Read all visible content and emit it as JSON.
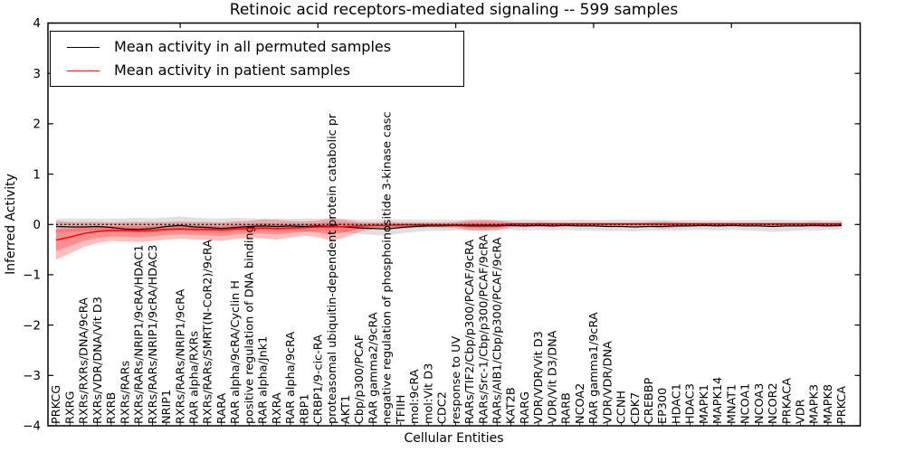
{
  "figure": {
    "title": "Retinoic acid receptors-mediated signaling -- 599 samples",
    "xlabel": "Cellular Entities",
    "ylabel": "Inferred Activity",
    "legend": [
      {
        "label": "Mean activity in all permuted samples",
        "color": "#000000"
      },
      {
        "label": "Mean activity in patient samples",
        "color": "#ff0000"
      }
    ]
  },
  "chart_data": {
    "type": "line",
    "title": "Retinoic acid receptors-mediated signaling -- 599 samples",
    "xlabel": "Cellular Entities",
    "ylabel": "Inferred Activity",
    "ylim": [
      -4,
      4
    ],
    "yticks": [
      -4,
      -3,
      -2,
      -1,
      0,
      1,
      2,
      3,
      4
    ],
    "grid": false,
    "legend_position": "upper left",
    "zero_line": {
      "style": "dotted",
      "color": "#000000",
      "y": 0
    },
    "top_tick_start": 9,
    "top_tick_step": 10,
    "inner_band_scale": 0.55,
    "categories": [
      "PRKCG",
      "RXRG",
      "RXRs/RXRs/DNA/9cRA",
      "RXRs/VDR/DNA/Vit D3",
      "RXRB",
      "RXRs/RARs",
      "RXRs/RARs/NRIP1/9cRA/HDAC1",
      "RXRs/RARs/NRIP1/9cRA/HDAC3",
      "NRIP1",
      "RXRs/RARs/NRIP1/9cRA",
      "RAR alpha/RXRs",
      "RXRs/RARs/SMRT(N-CoR2)/9cRA",
      "RARA",
      "RAR alpha/9cRA/Cyclin H",
      "positive regulation of DNA binding",
      "RAR alpha/Jnk1",
      "RXRA",
      "RAR alpha/9cRA",
      "RBP1",
      "CRBP1/9-cic-RA",
      "proteasomal ubiquitin-dependent protein catabolic pr",
      "AKT1",
      "Cbp/p300/PCAF",
      "RAR gamma2/9cRA",
      "negative regulation of phosphoinositide 3-kinase casc",
      "TFIIH",
      "mol:9cRA",
      "mol:Vit D3",
      "CDC2",
      "response to UV",
      "RARs/TIF2/Cbp/p300/PCAF/9cRA",
      "RARs/Src-1/Cbp/p300/PCAF/9cRA",
      "RARs/AIB1/Cbp/p300/PCAF/9cRA",
      "KAT2B",
      "RARG",
      "VDR/VDR/Vit D3",
      "VDR/Vit D3/DNA",
      "RARB",
      "NCOA2",
      "RAR gamma1/9cRA",
      "VDR/VDR/DNA",
      "CCNH",
      "CDK7",
      "CREBBP",
      "EP300",
      "HDAC1",
      "HDAC3",
      "MAPK1",
      "MAPK14",
      "MNAT1",
      "NCOA1",
      "NCOA3",
      "NCOR2",
      "PRKACA",
      "VDR",
      "MAPK3",
      "MAPK8",
      "PRKCA"
    ],
    "series": [
      {
        "name": "Mean activity in all permuted samples",
        "color": "#000000",
        "style": "solid",
        "values": [
          -0.04,
          -0.05,
          -0.05,
          -0.04,
          -0.06,
          -0.09,
          -0.1,
          -0.08,
          -0.04,
          -0.02,
          -0.05,
          -0.06,
          -0.08,
          -0.06,
          -0.04,
          -0.03,
          -0.04,
          -0.03,
          -0.04,
          -0.03,
          -0.04,
          -0.05,
          -0.07,
          -0.08,
          -0.09,
          -0.06,
          -0.04,
          -0.03,
          -0.03,
          -0.02,
          -0.03,
          -0.03,
          -0.03,
          -0.02,
          -0.03,
          -0.02,
          -0.03,
          -0.02,
          -0.03,
          -0.03,
          -0.04,
          -0.04,
          -0.05,
          -0.04,
          -0.04,
          -0.03,
          -0.03,
          -0.02,
          -0.03,
          -0.02,
          -0.03,
          -0.03,
          -0.04,
          -0.03,
          -0.03,
          -0.02,
          -0.03,
          -0.02
        ]
      },
      {
        "name": "Mean activity in patient samples",
        "color": "#ff0000",
        "style": "solid",
        "values": [
          -0.31,
          -0.25,
          -0.18,
          -0.14,
          -0.12,
          -0.12,
          -0.13,
          -0.12,
          -0.1,
          -0.09,
          -0.1,
          -0.1,
          -0.11,
          -0.09,
          -0.08,
          -0.07,
          -0.08,
          -0.07,
          -0.06,
          -0.05,
          -0.05,
          -0.04,
          -0.03,
          -0.02,
          -0.02,
          -0.01,
          -0.01,
          -0.01,
          -0.01,
          -0.01,
          -0.01,
          -0.01,
          -0.01,
          0.01,
          0.01,
          0.01,
          0.01,
          0.01,
          0.01,
          0.01,
          0.01,
          0.01,
          0.01,
          0.01,
          0.01,
          0.01,
          0.01,
          0.01,
          0.01,
          0.01,
          0.01,
          0.01,
          0.01,
          0.01,
          0.01,
          0.01,
          0.01,
          0.01
        ]
      }
    ],
    "bands": {
      "permuted": {
        "name": "permuted-samples-band",
        "color": "#000000",
        "opacity": 0.12,
        "upper": [
          0.11,
          0.12,
          0.12,
          0.11,
          0.12,
          0.12,
          0.13,
          0.12,
          0.14,
          0.16,
          0.13,
          0.12,
          0.12,
          0.13,
          0.12,
          0.11,
          0.12,
          0.11,
          0.12,
          0.11,
          0.12,
          0.11,
          0.1,
          0.1,
          0.11,
          0.1,
          0.1,
          0.09,
          0.1,
          0.09,
          0.1,
          0.1,
          0.09,
          0.09,
          0.1,
          0.09,
          0.09,
          0.09,
          0.1,
          0.09,
          0.09,
          0.1,
          0.09,
          0.09,
          0.09,
          0.08,
          0.09,
          0.08,
          0.09,
          0.08,
          0.09,
          0.09,
          0.1,
          0.09,
          0.08,
          0.09,
          0.08,
          0.08
        ],
        "lower": [
          -0.16,
          -0.15,
          -0.14,
          -0.14,
          -0.15,
          -0.17,
          -0.18,
          -0.16,
          -0.14,
          -0.13,
          -0.15,
          -0.16,
          -0.17,
          -0.15,
          -0.14,
          -0.13,
          -0.14,
          -0.13,
          -0.14,
          -0.13,
          -0.14,
          -0.16,
          -0.19,
          -0.21,
          -0.22,
          -0.18,
          -0.15,
          -0.13,
          -0.13,
          -0.12,
          -0.12,
          -0.12,
          -0.12,
          -0.11,
          -0.12,
          -0.11,
          -0.12,
          -0.11,
          -0.12,
          -0.12,
          -0.13,
          -0.13,
          -0.14,
          -0.13,
          -0.12,
          -0.12,
          -0.11,
          -0.11,
          -0.12,
          -0.11,
          -0.12,
          -0.13,
          -0.15,
          -0.14,
          -0.12,
          -0.12,
          -0.11,
          -0.1
        ]
      },
      "patient": {
        "name": "patient-samples-band",
        "color": "#ff0000",
        "opacity": 0.25,
        "upper": [
          0.07,
          0.05,
          0.05,
          0.05,
          0.04,
          0.05,
          0.05,
          0.05,
          0.05,
          0.06,
          0.05,
          0.05,
          0.04,
          0.06,
          0.07,
          0.1,
          0.09,
          0.07,
          0.06,
          0.08,
          0.12,
          0.09,
          0.05,
          0.04,
          0.05,
          0.04,
          0.04,
          0.04,
          0.04,
          0.05,
          0.08,
          0.09,
          0.08,
          0.05,
          0.04,
          0.05,
          0.04,
          0.04,
          0.04,
          0.04,
          0.04,
          0.04,
          0.04,
          0.05,
          0.06,
          0.05,
          0.04,
          0.04,
          0.04,
          0.04,
          0.04,
          0.04,
          0.04,
          0.04,
          0.04,
          0.05,
          0.04,
          0.05
        ],
        "lower": [
          -0.7,
          -0.58,
          -0.45,
          -0.37,
          -0.33,
          -0.34,
          -0.35,
          -0.33,
          -0.3,
          -0.28,
          -0.3,
          -0.31,
          -0.33,
          -0.29,
          -0.27,
          -0.28,
          -0.3,
          -0.26,
          -0.22,
          -0.25,
          -0.33,
          -0.25,
          -0.15,
          -0.1,
          -0.1,
          -0.08,
          -0.07,
          -0.06,
          -0.06,
          -0.07,
          -0.12,
          -0.13,
          -0.11,
          -0.06,
          -0.05,
          -0.05,
          -0.05,
          -0.04,
          -0.04,
          -0.04,
          -0.05,
          -0.04,
          -0.04,
          -0.05,
          -0.08,
          -0.06,
          -0.04,
          -0.04,
          -0.04,
          -0.04,
          -0.04,
          -0.04,
          -0.05,
          -0.04,
          -0.04,
          -0.05,
          -0.04,
          -0.05
        ]
      }
    }
  }
}
